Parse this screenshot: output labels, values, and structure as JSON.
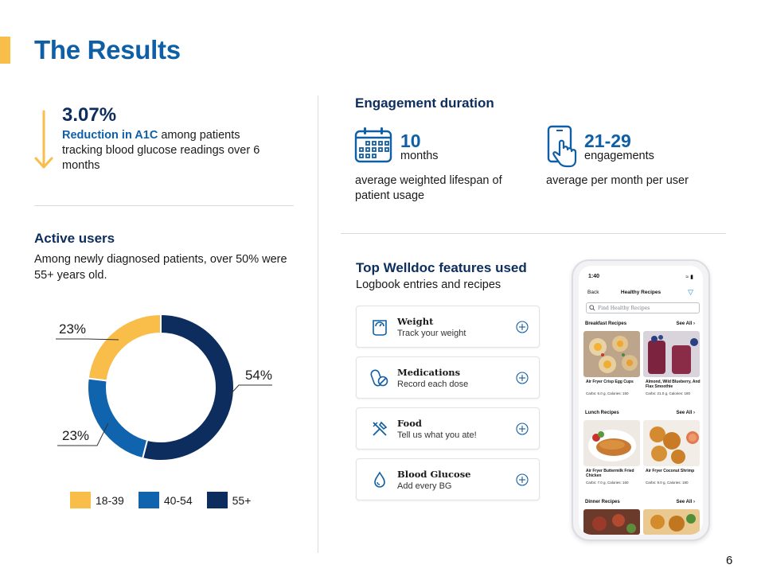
{
  "title": "The Results",
  "a1c": {
    "value": "3.07%",
    "highlight": "Reduction in A1C",
    "text": " among patients tracking blood glucose readings over 6 months"
  },
  "active_users": {
    "heading": "Active users",
    "subtitle": "Among newly diagnosed patients, over 50% were 55+ years old."
  },
  "chart_data": {
    "type": "pie",
    "donut": true,
    "categories": [
      "18-39",
      "40-54",
      "55+"
    ],
    "values": [
      23,
      23,
      54
    ],
    "labels": [
      "23%",
      "23%",
      "54%"
    ],
    "colors": [
      "#f9bd49",
      "#0f64ad",
      "#0c2d5e"
    ],
    "legend": "bottom"
  },
  "engagement": {
    "heading": "Engagement duration",
    "items": [
      {
        "number": "10",
        "unit": "months",
        "desc": "average weighted lifespan of patient usage",
        "icon": "calendar-icon"
      },
      {
        "number": "21-29",
        "unit": "engagements",
        "desc": "average per month per user",
        "icon": "phone-touch-icon"
      }
    ]
  },
  "features": {
    "heading": "Top Welldoc features used",
    "subtitle": "Logbook entries and recipes",
    "items": [
      {
        "title": "Weight",
        "subtitle": "Track your weight",
        "icon": "scale-icon"
      },
      {
        "title": "Medications",
        "subtitle": "Record each dose",
        "icon": "pill-icon"
      },
      {
        "title": "Food",
        "subtitle": "Tell us what you ate!",
        "icon": "utensils-icon"
      },
      {
        "title": "Blood Glucose",
        "subtitle": "Add every BG",
        "icon": "drop-icon"
      }
    ]
  },
  "phone": {
    "time": "1:40",
    "back": "Back",
    "title": "Healthy Recipes",
    "search_placeholder": "Find Healthy Recipes",
    "see_all": "See All",
    "sections": [
      {
        "name": "Breakfast Recipes",
        "recipes": [
          {
            "name": "Air Fryer Crisp Egg Cups",
            "nutrition": "Carbs: 6.0 g, Calories: 150"
          },
          {
            "name": "Almond, Wild Blueberry, And Flax Smoothie",
            "nutrition": "Carbs: 21.0 g, Calories: 180"
          }
        ]
      },
      {
        "name": "Lunch Recipes",
        "recipes": [
          {
            "name": "Air Fryer Buttermilk Fried Chicken",
            "nutrition": "Carbs: 7.0 g, Calories: 160"
          },
          {
            "name": "Air Fryer Coconut Shrimp",
            "nutrition": "Carbs: 9.0 g, Calories: 180"
          }
        ]
      },
      {
        "name": "Dinner Recipes",
        "recipes": []
      }
    ]
  },
  "page_number": "6"
}
